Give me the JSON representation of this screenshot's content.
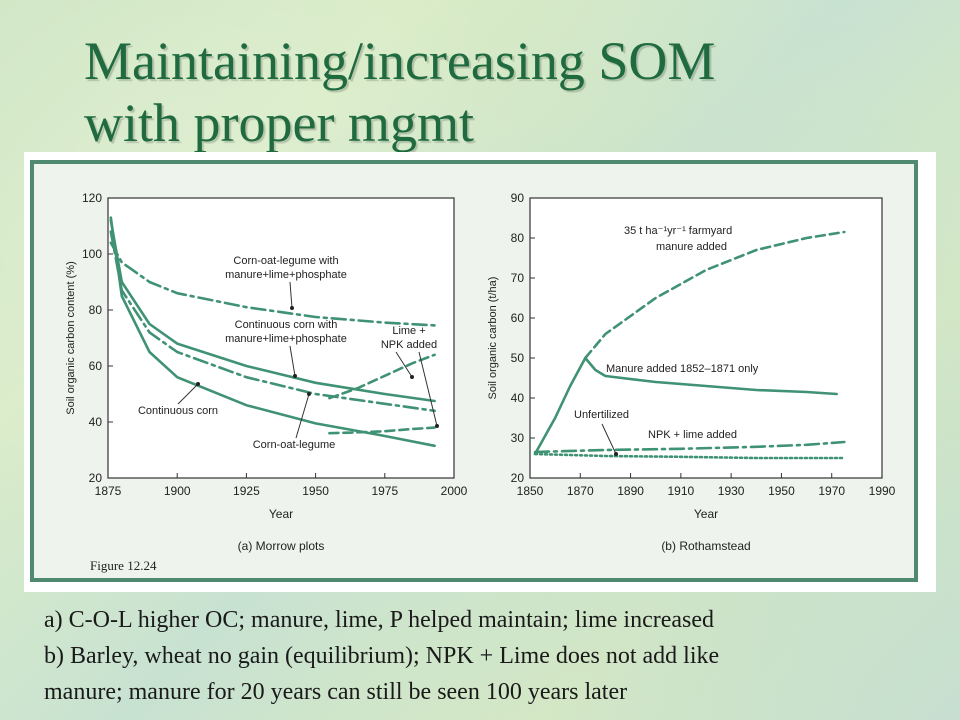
{
  "slide": {
    "title_line1": "Maintaining/increasing SOM",
    "title_line2": "with proper mgmt",
    "figure_label": "Figure 12.24",
    "caption_a": "a) C-O-L higher OC; manure, lime, P helped maintain; lime increased",
    "caption_b1": "b) Barley, wheat no gain (equilibrium); NPK + Lime does not add like",
    "caption_b2": "manure; manure for 20 years can still be seen 100 years later"
  },
  "colors": {
    "title": "#1f6b3f",
    "series": "#3f9273",
    "panel_bg": "#eef3ed",
    "frame_border": "#4f8a70"
  },
  "chart_data": [
    {
      "type": "line",
      "subtitle": "(a) Morrow plots",
      "xlabel": "Year",
      "ylabel": "Soil organic carbon content (%)",
      "xlim": [
        1875,
        2000
      ],
      "ylim": [
        20,
        120
      ],
      "xticks": [
        "1875",
        "1900",
        "1925",
        "1950",
        "1975",
        "2000"
      ],
      "yticks": [
        "20",
        "40",
        "60",
        "80",
        "100",
        "120"
      ],
      "series": [
        {
          "name": "Corn-oat-legume with manure+lime+phosphate",
          "style": "dashdot",
          "points": [
            [
              1876,
              104
            ],
            [
              1880,
              97
            ],
            [
              1890,
              90
            ],
            [
              1900,
              86
            ],
            [
              1925,
              81
            ],
            [
              1950,
              77.5
            ],
            [
              1975,
              75.5
            ],
            [
              1993,
              74.5
            ]
          ]
        },
        {
          "name": "Continuous corn with manure+lime+phosphate",
          "style": "solid",
          "points": [
            [
              1876,
              112
            ],
            [
              1880,
              90
            ],
            [
              1890,
              75
            ],
            [
              1900,
              68
            ],
            [
              1925,
              60
            ],
            [
              1950,
              54
            ],
            [
              1975,
              50
            ],
            [
              1993,
              47.5
            ]
          ]
        },
        {
          "name": "Corn-oat-legume",
          "style": "dashdot",
          "points": [
            [
              1876,
              108
            ],
            [
              1880,
              87
            ],
            [
              1890,
              72
            ],
            [
              1900,
              65
            ],
            [
              1925,
              56
            ],
            [
              1950,
              50
            ],
            [
              1975,
              46.5
            ],
            [
              1993,
              44
            ]
          ]
        },
        {
          "name": "Continuous corn",
          "style": "solid",
          "points": [
            [
              1876,
              113
            ],
            [
              1880,
              85
            ],
            [
              1890,
              65
            ],
            [
              1900,
              56
            ],
            [
              1925,
              46
            ],
            [
              1950,
              39.5
            ],
            [
              1975,
              35
            ],
            [
              1993,
              31.5
            ]
          ]
        },
        {
          "name": "Lime + NPK added (upper)",
          "style": "dashed",
          "points": [
            [
              1955,
              48.5
            ],
            [
              1965,
              52
            ],
            [
              1975,
              56.5
            ],
            [
              1985,
              61
            ],
            [
              1993,
              64
            ]
          ]
        },
        {
          "name": "Lime + NPK added (lower)",
          "style": "dashed",
          "points": [
            [
              1955,
              36
            ],
            [
              1965,
              36.3
            ],
            [
              1975,
              36.7
            ],
            [
              1985,
              37.5
            ],
            [
              1993,
              38
            ]
          ]
        }
      ],
      "annotations": [
        {
          "text1": "Corn-oat-legume with",
          "text2": "manure+lime+phosphate"
        },
        {
          "text1": "Continuous corn with",
          "text2": "manure+lime+phosphate"
        },
        {
          "text1": "Continuous corn"
        },
        {
          "text1": "Corn-oat-legume"
        },
        {
          "text1": "Lime +",
          "text2": "NPK added"
        }
      ]
    },
    {
      "type": "line",
      "subtitle": "(b) Rothamstead",
      "xlabel": "Year",
      "ylabel": "Soil organic carbon (t/ha)",
      "xlim": [
        1850,
        1990
      ],
      "ylim": [
        20,
        90
      ],
      "xticks": [
        "1850",
        "1870",
        "1890",
        "1910",
        "1930",
        "1950",
        "1970",
        "1990"
      ],
      "yticks": [
        "20",
        "30",
        "40",
        "50",
        "60",
        "70",
        "80",
        "90"
      ],
      "series": [
        {
          "name": "35 t ha⁻¹yr⁻¹ farmyard manure added",
          "style": "dashed",
          "points": [
            [
              1872,
              50
            ],
            [
              1880,
              56
            ],
            [
              1900,
              65
            ],
            [
              1920,
              72
            ],
            [
              1940,
              77
            ],
            [
              1960,
              80
            ],
            [
              1975,
              81.5
            ]
          ]
        },
        {
          "name": "Manure added 1852–1871 only",
          "style": "solid",
          "points": [
            [
              1852,
              26
            ],
            [
              1860,
              35
            ],
            [
              1866,
              43
            ],
            [
              1872,
              50
            ],
            [
              1876,
              47
            ],
            [
              1880,
              45.5
            ],
            [
              1900,
              44
            ],
            [
              1920,
              43
            ],
            [
              1940,
              42
            ],
            [
              1960,
              41.5
            ],
            [
              1972,
              41
            ]
          ]
        },
        {
          "name": "NPK + lime added",
          "style": "dashdot",
          "points": [
            [
              1852,
              26.5
            ],
            [
              1880,
              27
            ],
            [
              1910,
              27.3
            ],
            [
              1940,
              27.8
            ],
            [
              1960,
              28.3
            ],
            [
              1975,
              29
            ]
          ]
        },
        {
          "name": "Unfertilized",
          "style": "dotted",
          "points": [
            [
              1852,
              26
            ],
            [
              1880,
              25.5
            ],
            [
              1910,
              25.3
            ],
            [
              1940,
              25
            ],
            [
              1975,
              25
            ]
          ]
        }
      ],
      "annotations": [
        {
          "text1": "35 t ha⁻¹yr⁻¹ farmyard",
          "text2": "manure added"
        },
        {
          "text1": "Manure added 1852–1871 only"
        },
        {
          "text1": "Unfertilized"
        },
        {
          "text1": "NPK + lime added"
        }
      ]
    }
  ]
}
